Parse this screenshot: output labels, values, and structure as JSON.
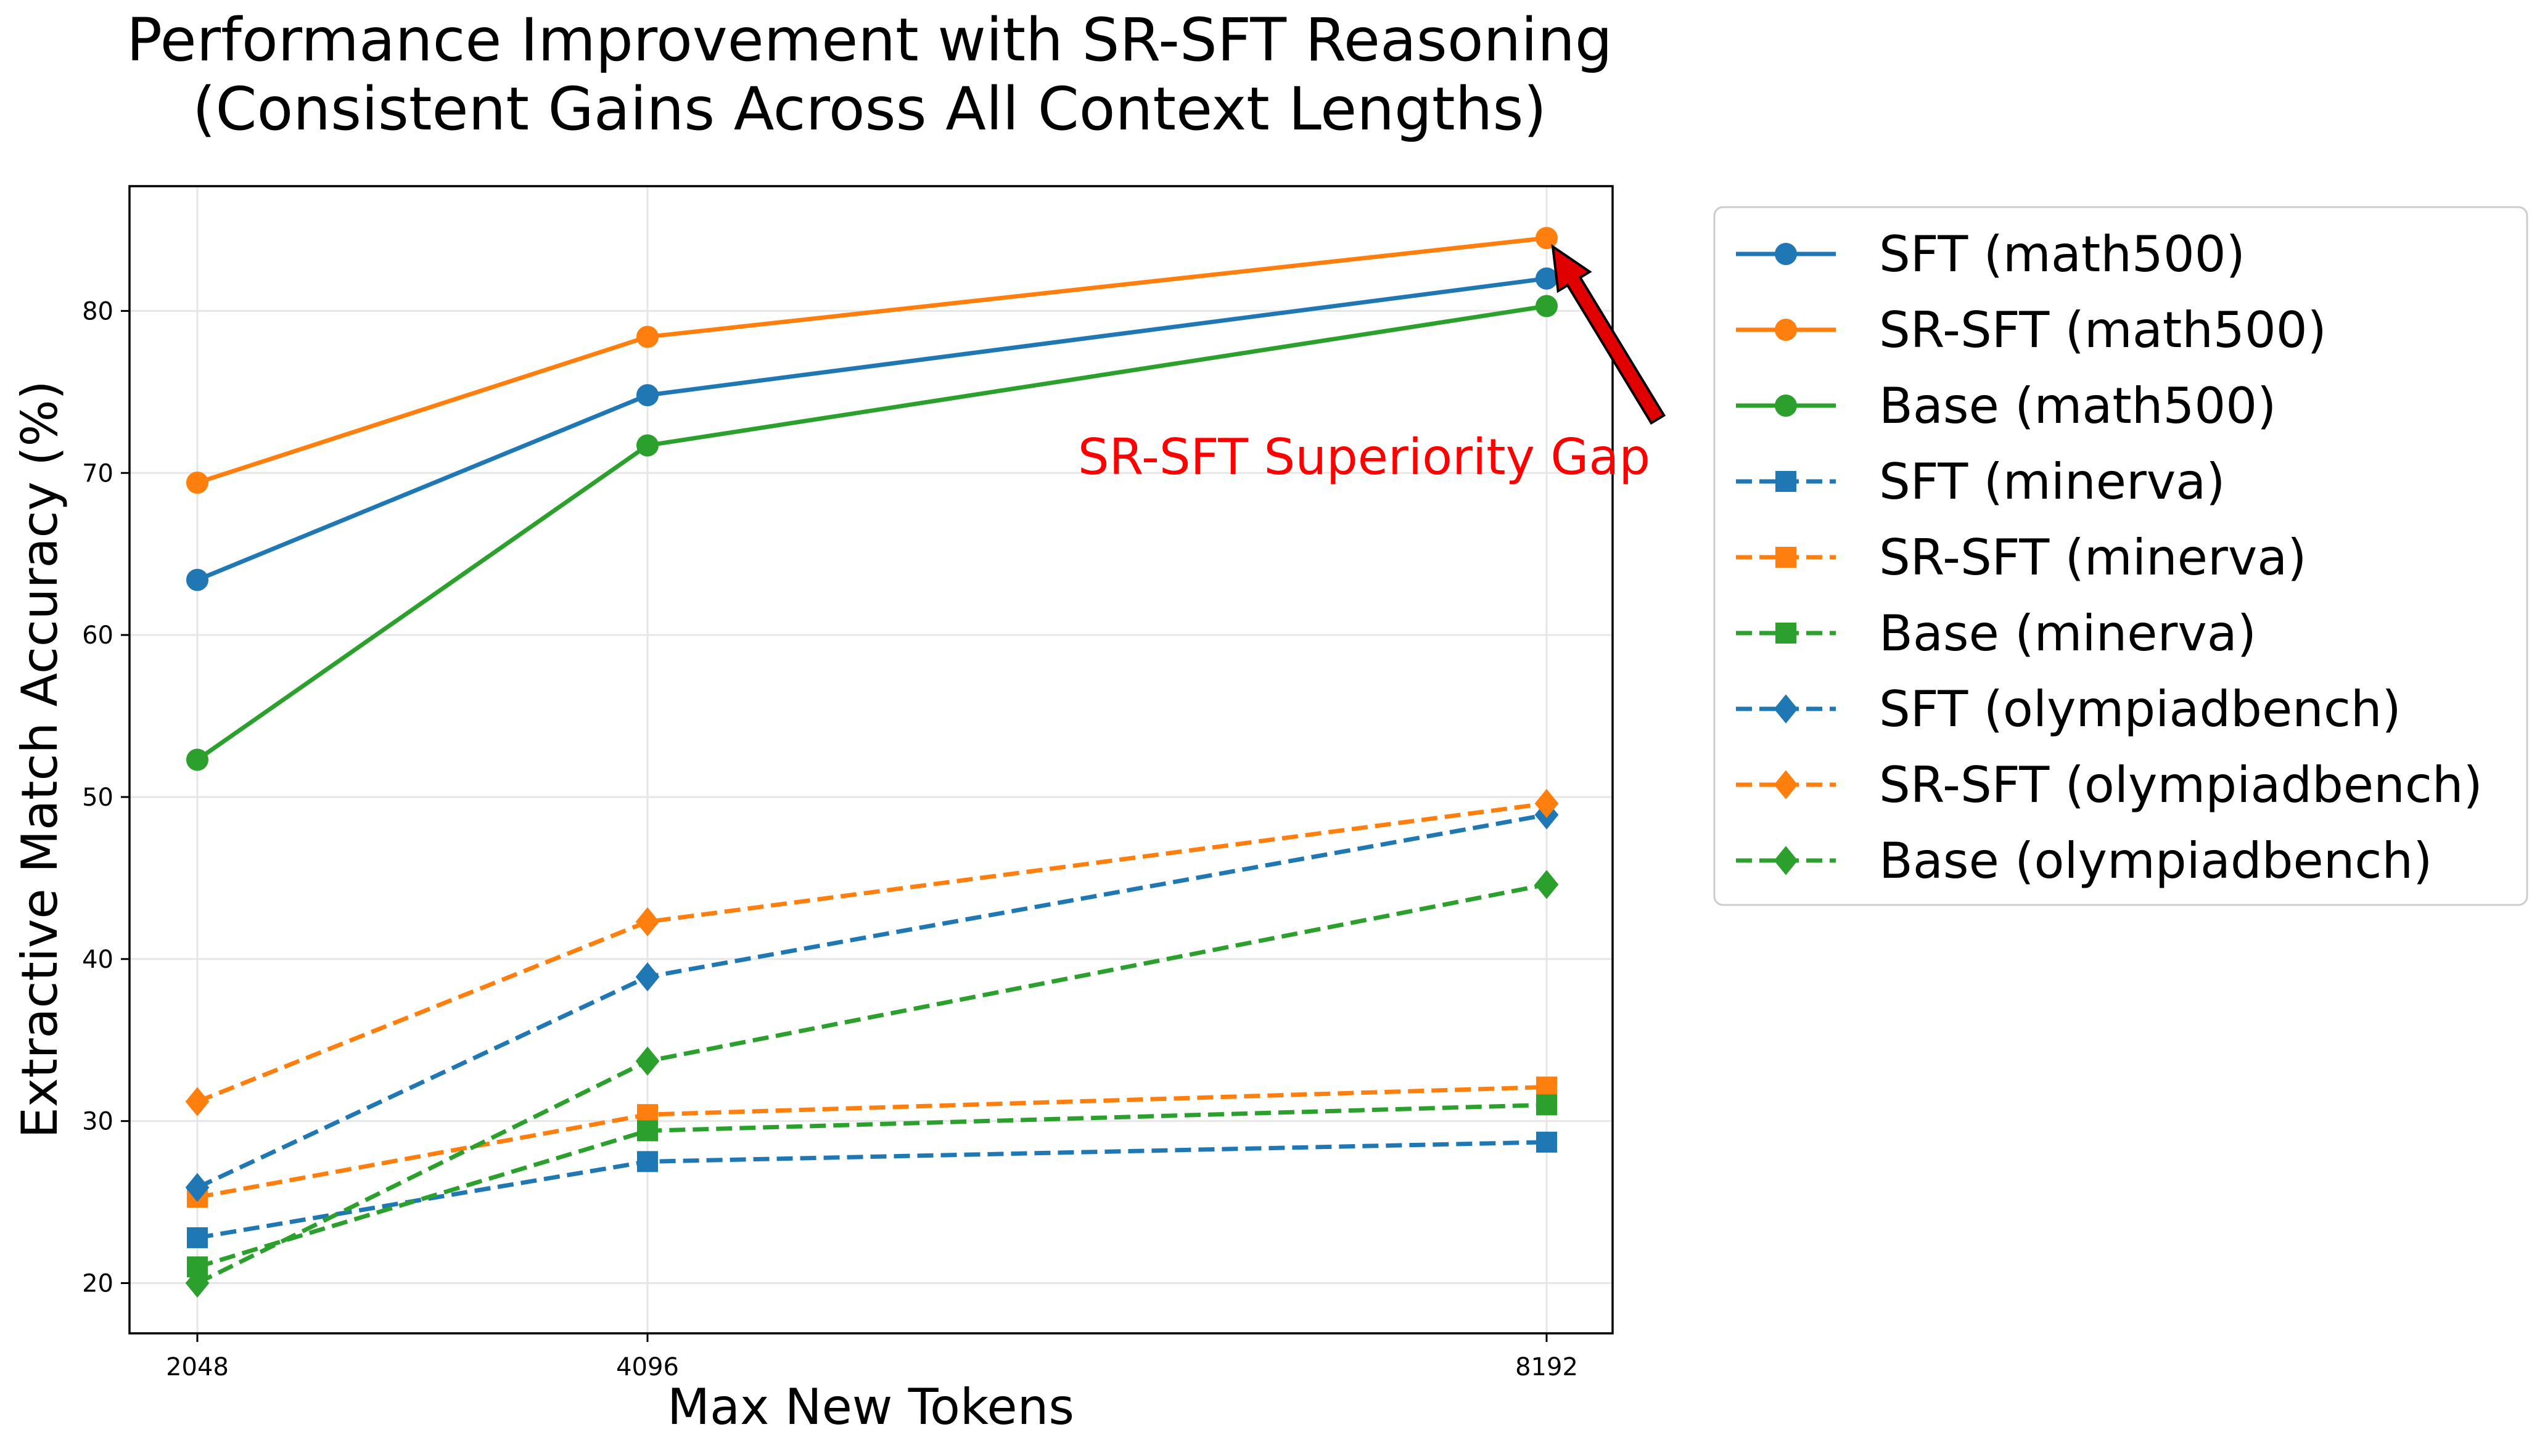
{
  "chart_data": {
    "type": "line",
    "title_lines": [
      "Performance Improvement with SR-SFT Reasoning",
      "(Consistent Gains Across All Context Lengths)"
    ],
    "xlabel": "Max New Tokens",
    "ylabel": "Extractive Match Accuracy (%)",
    "x": [
      2048,
      4096,
      8192
    ],
    "x_tick_labels": [
      "2048",
      "4096",
      "8192"
    ],
    "ylim": [
      16.9,
      87.7
    ],
    "y_ticks": [
      20,
      30,
      40,
      50,
      60,
      70,
      80
    ],
    "y_tick_labels": [
      "20",
      "30",
      "40",
      "50",
      "60",
      "70",
      "80"
    ],
    "grid": true,
    "legend_position": "outside-right",
    "series": [
      {
        "name": "SFT (math500)",
        "values": [
          63.4,
          74.8,
          82.0
        ],
        "color": "#1f77b4",
        "marker": "circle",
        "dashed": false
      },
      {
        "name": "SR-SFT (math500)",
        "values": [
          69.4,
          78.4,
          84.5
        ],
        "color": "#ff7f0e",
        "marker": "circle",
        "dashed": false
      },
      {
        "name": "Base (math500)",
        "values": [
          52.3,
          71.7,
          80.3
        ],
        "color": "#2ca02c",
        "marker": "circle",
        "dashed": false
      },
      {
        "name": "SFT (minerva)",
        "values": [
          22.8,
          27.5,
          28.7
        ],
        "color": "#1f77b4",
        "marker": "square",
        "dashed": true
      },
      {
        "name": "SR-SFT (minerva)",
        "values": [
          25.3,
          30.4,
          32.1
        ],
        "color": "#ff7f0e",
        "marker": "square",
        "dashed": true
      },
      {
        "name": "Base (minerva)",
        "values": [
          21.0,
          29.4,
          31.0
        ],
        "color": "#2ca02c",
        "marker": "square",
        "dashed": true
      },
      {
        "name": "SFT (olympiadbench)",
        "values": [
          25.9,
          38.9,
          48.9
        ],
        "color": "#1f77b4",
        "marker": "diamond",
        "dashed": true
      },
      {
        "name": "SR-SFT (olympiadbench)",
        "values": [
          31.2,
          42.3,
          49.6
        ],
        "color": "#ff7f0e",
        "marker": "diamond",
        "dashed": true
      },
      {
        "name": "Base (olympiadbench)",
        "values": [
          20.0,
          33.7,
          44.6
        ],
        "color": "#2ca02c",
        "marker": "diamond",
        "dashed": true
      }
    ],
    "annotation": {
      "text": "SR-SFT Superiority Gap",
      "color": "#ff0000",
      "target_x": 8192,
      "target_y": 84.5,
      "text_x": 8192,
      "text_y": 71.0
    }
  }
}
